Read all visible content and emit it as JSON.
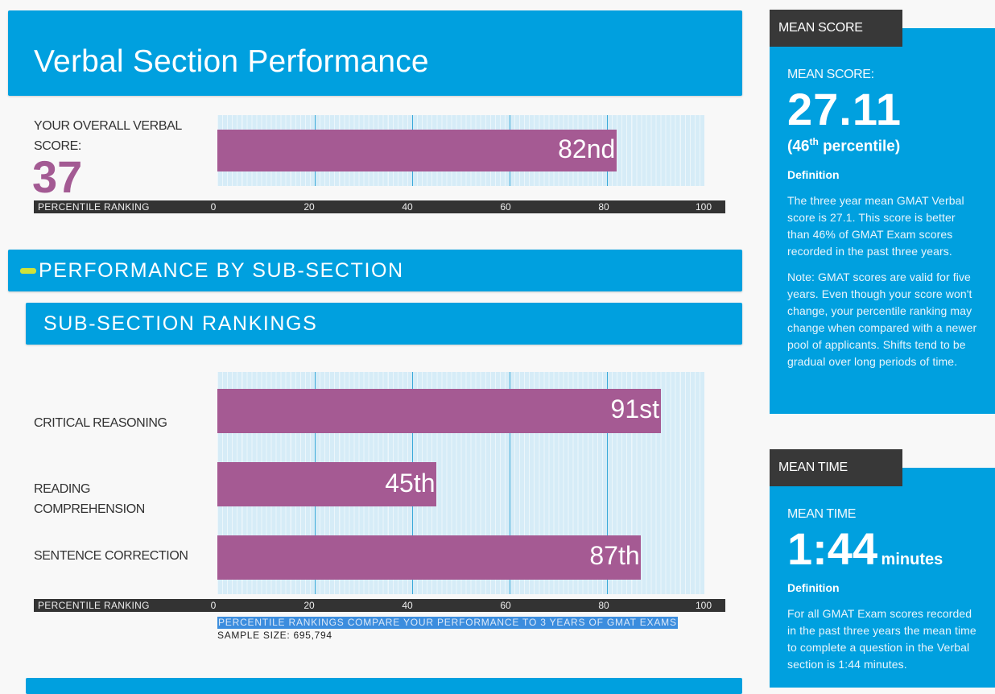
{
  "header": {
    "title": "Verbal Section Performance"
  },
  "overall": {
    "score_label": "YOUR OVERALL VERBAL SCORE:",
    "score": "37",
    "percentile": 82,
    "percentile_label": "82nd"
  },
  "axis": {
    "title": "PERCENTILE RANKING",
    "ticks": [
      "0",
      "20",
      "40",
      "60",
      "80",
      "100"
    ]
  },
  "subsection": {
    "heading": "PERFORMANCE BY SUB-SECTION",
    "rankings_heading": "SUB-SECTION RANKINGS",
    "rows": [
      {
        "label": "CRITICAL REASONING",
        "value": 91,
        "value_label": "91st"
      },
      {
        "label": "READING COMPREHENSION",
        "value": 45,
        "value_label": "45th"
      },
      {
        "label": "SENTENCE CORRECTION",
        "value": 87,
        "value_label": "87th"
      }
    ],
    "note": "PERCENTILE RANKINGS COMPARE YOUR PERFORMANCE TO 3 YEARS OF GMAT EXAMS",
    "sample_size": "SAMPLE SIZE: 695,794"
  },
  "mean_score_panel": {
    "tab": "MEAN SCORE",
    "label": "MEAN SCORE:",
    "value": "27.11",
    "percentile_open": "(46",
    "percentile_sup": "th",
    "percentile_close": " percentile)",
    "definition_title": "Definition",
    "paragraph1": "The three year mean GMAT Verbal score is 27.1. This score is better than 46% of GMAT Exam scores recorded in the past three years.",
    "paragraph2": "Note: GMAT scores are valid for five years. Even though your score won't change, your percentile ranking may change when compared with a newer pool of applicants. Shifts tend to be gradual over long periods of time."
  },
  "mean_time_panel": {
    "tab": "MEAN TIME",
    "label": "MEAN TIME",
    "value": "1:44",
    "unit": "minutes",
    "definition_title": "Definition",
    "paragraph1": "For all GMAT Exam scores recorded in the past three years the mean time to complete a question in the Verbal section is 1:44 minutes."
  },
  "chart_data": [
    {
      "type": "bar",
      "orientation": "horizontal",
      "categories": [
        "YOUR OVERALL VERBAL SCORE"
      ],
      "values": [
        82
      ],
      "value_labels": [
        "82nd"
      ],
      "xlabel": "PERCENTILE RANKING",
      "xlim": [
        0,
        100
      ],
      "xticks": [
        0,
        20,
        40,
        60,
        80,
        100
      ],
      "grid": true,
      "bar_color": "#a55a93"
    },
    {
      "type": "bar",
      "orientation": "horizontal",
      "categories": [
        "CRITICAL REASONING",
        "READING COMPREHENSION",
        "SENTENCE CORRECTION"
      ],
      "values": [
        91,
        45,
        87
      ],
      "value_labels": [
        "91st",
        "45th",
        "87th"
      ],
      "xlabel": "PERCENTILE RANKING",
      "xlim": [
        0,
        100
      ],
      "xticks": [
        0,
        20,
        40,
        60,
        80,
        100
      ],
      "grid": true,
      "bar_color": "#a55a93"
    }
  ],
  "colors": {
    "accent_blue": "#00a0df",
    "bar_purple": "#a55a93",
    "dark": "#333333"
  }
}
